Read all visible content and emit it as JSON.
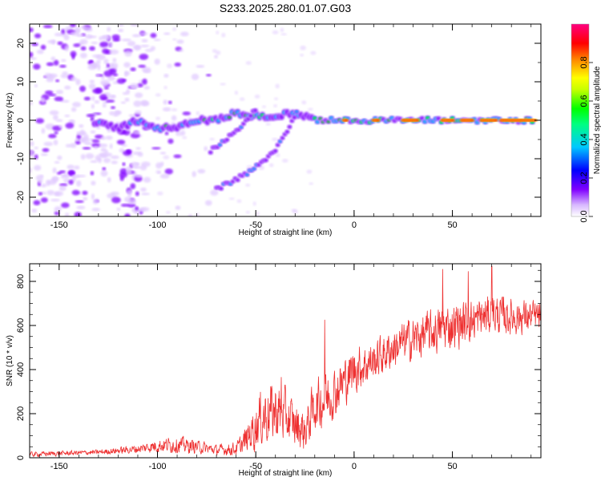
{
  "title": "S233.2025.280.01.07.G03",
  "chart_data": [
    {
      "type": "heatmap",
      "title": "",
      "xlabel": "Height of straight line (km)",
      "ylabel": "Frequency (Hz)",
      "xlim": [
        -165,
        95
      ],
      "ylim": [
        -25,
        25
      ],
      "xticks": [
        -150,
        -100,
        -50,
        0,
        50
      ],
      "xtick_labels": [
        "-150",
        "-100",
        "-50",
        "0",
        "50"
      ],
      "yticks": [
        -20,
        -10,
        0,
        10,
        20
      ],
      "ytick_labels": [
        "-20",
        "-10",
        "0",
        "10",
        "20"
      ],
      "colorbar": {
        "label": "Normalized spectral amplitude",
        "range": [
          0,
          1
        ],
        "ticks": [
          0,
          0.2,
          0.4,
          0.6,
          0.8
        ],
        "tick_labels": [
          "0.0",
          "0.2",
          "0.4",
          "0.6",
          "0.8"
        ],
        "colors": [
          "#e0c8ff",
          "#8000ff",
          "#0000ff",
          "#00d8ff",
          "#00ff00",
          "#ffff00",
          "#ff8000",
          "#ff0000",
          "#ff0080"
        ]
      },
      "features": [
        {
          "name": "main_band",
          "x": [
            -130,
            -120,
            -110,
            -100,
            -90,
            -80,
            -70,
            -60,
            -50,
            -40,
            -30,
            -20,
            0,
            50,
            92
          ],
          "freq": [
            -1,
            -2,
            0,
            -2,
            -2,
            0,
            0,
            2,
            1,
            1,
            2,
            0,
            0,
            0,
            0
          ]
        },
        {
          "name": "branch_1",
          "x": [
            -73,
            -60,
            -50
          ],
          "freq": [
            -8,
            -3,
            3
          ]
        },
        {
          "name": "branch_2",
          "x": [
            -70,
            -55,
            -40,
            -28
          ],
          "freq": [
            -18,
            -14,
            -8,
            3
          ]
        }
      ]
    },
    {
      "type": "line",
      "title": "",
      "xlabel": "Height of straight line (km)",
      "ylabel": "SNR (10 * v/v)",
      "xlim": [
        -165,
        95
      ],
      "ylim": [
        0,
        880
      ],
      "xticks": [
        -150,
        -100,
        -50,
        0,
        50
      ],
      "xtick_labels": [
        "-150",
        "-100",
        "-50",
        "0",
        "50"
      ],
      "yticks": [
        0,
        200,
        400,
        600,
        800
      ],
      "ytick_labels": [
        "0",
        "200",
        "400",
        "600",
        "800"
      ],
      "series": [
        {
          "name": "SNR",
          "color": "#ee3030",
          "x": [
            -165,
            -150,
            -130,
            -110,
            -100,
            -90,
            -80,
            -70,
            -60,
            -55,
            -50,
            -45,
            -40,
            -35,
            -30,
            -25,
            -20,
            -15,
            -10,
            -5,
            0,
            10,
            20,
            30,
            40,
            50,
            60,
            70,
            80,
            95
          ],
          "mean": [
            15,
            20,
            25,
            40,
            55,
            60,
            50,
            35,
            40,
            80,
            150,
            200,
            210,
            190,
            150,
            120,
            240,
            260,
            300,
            350,
            400,
            440,
            500,
            540,
            570,
            600,
            620,
            650,
            640,
            640
          ],
          "amp": [
            15,
            15,
            15,
            25,
            40,
            50,
            40,
            30,
            40,
            80,
            150,
            180,
            180,
            160,
            140,
            120,
            150,
            150,
            150,
            140,
            140,
            120,
            120,
            130,
            130,
            140,
            130,
            120,
            110,
            90
          ],
          "peaks": [
            [
              -37,
              365
            ],
            [
              -15,
              625
            ],
            [
              45,
              855
            ],
            [
              58,
              845
            ],
            [
              70,
              870
            ]
          ]
        }
      ]
    }
  ]
}
